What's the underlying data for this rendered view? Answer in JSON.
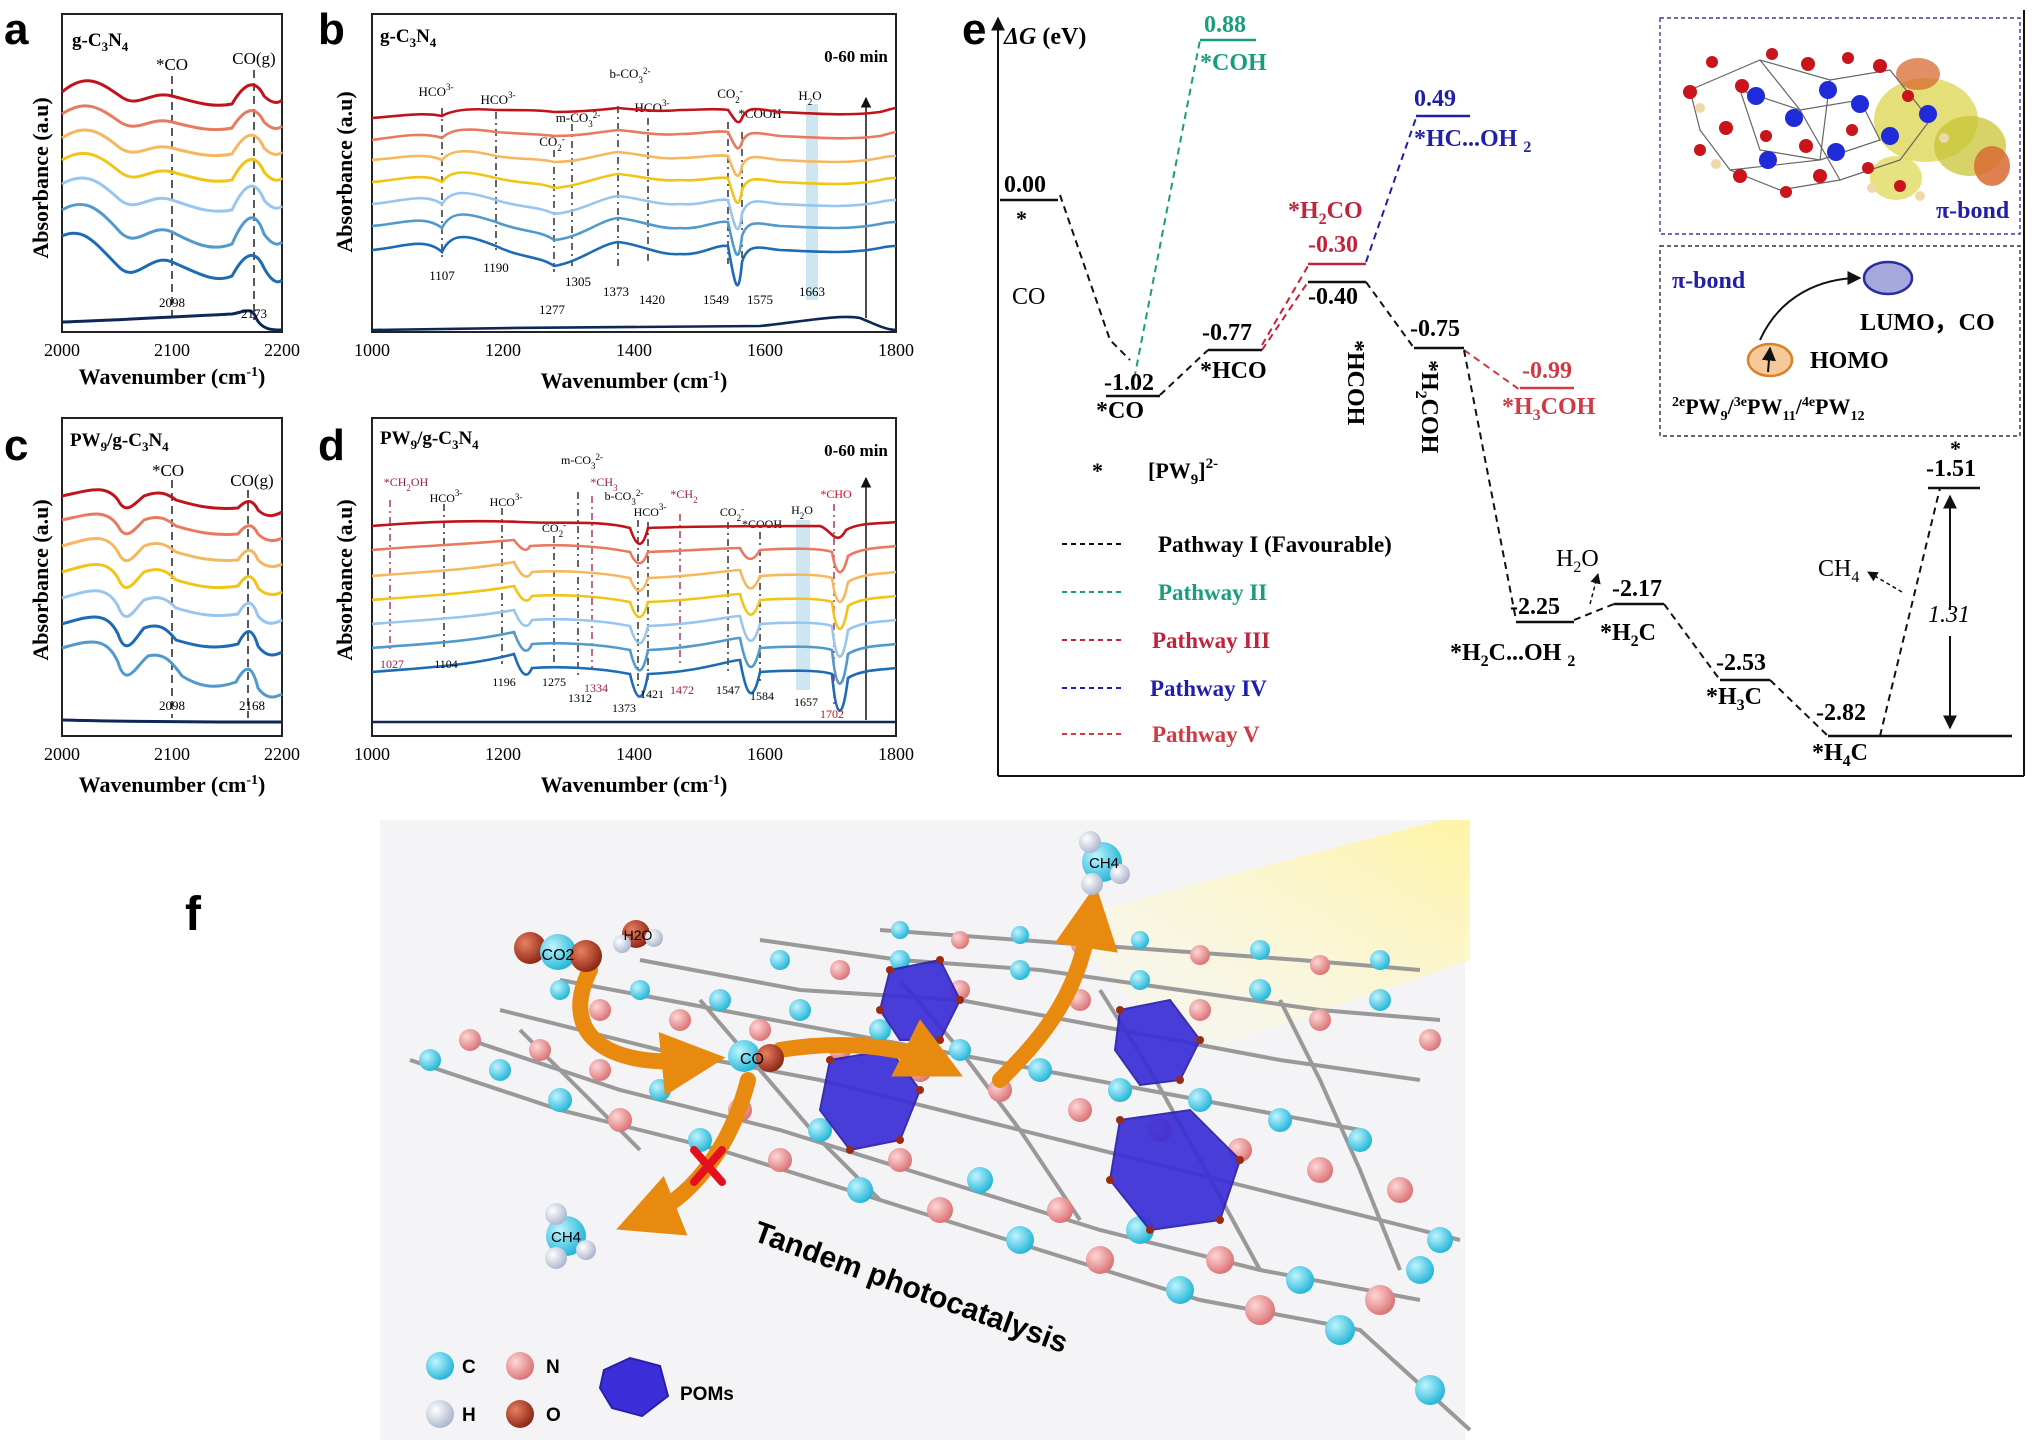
{
  "colors": {
    "spectra": [
      "#c0141c",
      "#e87a60",
      "#f5b860",
      "#f1c518",
      "#98c6ee",
      "#5299cc",
      "#1d6ab5",
      "#0d2855"
    ],
    "pathway_I": "#111111",
    "pathway_II": "#1a9d7e",
    "pathway_III": "#c0233a",
    "pathway_IV": "#1f1faa",
    "pathway_V": "#d03a44",
    "h2o_band": "#cde6f2",
    "atom_C": "#35c8e2",
    "atom_N": "#ea8c8e",
    "atom_H": "#c9d2e4",
    "atom_O": "#b43a24",
    "pom": "#3b2ed8"
  },
  "panel_labels": [
    "a",
    "b",
    "c",
    "d",
    "e",
    "f"
  ],
  "chart_data": [
    {
      "id": "a",
      "type": "line",
      "title": "g-C3N4",
      "xlabel": "Wavenumber (cm-1)",
      "ylabel": "Absorbance (a.u)",
      "xlim": [
        2000,
        2200
      ],
      "xticks": [
        2000,
        2100,
        2200
      ],
      "marker_labels": [
        "*CO",
        "CO(g)"
      ],
      "peaks": [
        2098,
        2173
      ],
      "series_count": 8
    },
    {
      "id": "b",
      "type": "line",
      "title": "g-C3N4",
      "xlabel": "Wavenumber (cm-1)",
      "ylabel": "Absorbance (a.u)",
      "xlim": [
        1000,
        1800
      ],
      "xticks": [
        1000,
        1200,
        1400,
        1600,
        1800
      ],
      "time_label": "0-60 min",
      "assignments": [
        "HCO3-",
        "HCO3-",
        "CO2-",
        "m-CO3 2-",
        "b-CO3 2-",
        "HCO3-",
        "CO2-",
        "*COOH",
        "H2O"
      ],
      "peaks": [
        1107,
        1190,
        1277,
        1305,
        1373,
        1420,
        1549,
        1575,
        1663
      ],
      "series_count": 8
    },
    {
      "id": "c",
      "type": "line",
      "title": "PW9/g-C3N4",
      "xlabel": "Wavenumber (cm-1)",
      "ylabel": "Absorbance (a.u)",
      "xlim": [
        2000,
        2200
      ],
      "xticks": [
        2000,
        2100,
        2200
      ],
      "marker_labels": [
        "*CO",
        "CO(g)"
      ],
      "peaks": [
        2098,
        2168
      ],
      "series_count": 8
    },
    {
      "id": "d",
      "type": "line",
      "title": "PW9/g-C3N4",
      "xlabel": "Wavenumber (cm-1)",
      "ylabel": "Absorbance (a.u)",
      "xlim": [
        1000,
        1800
      ],
      "xticks": [
        1000,
        1200,
        1400,
        1600,
        1800
      ],
      "time_label": "0-60 min",
      "assignments": [
        "*CH2OH",
        "HCO3-",
        "HCO3-",
        "CO2-",
        "m-CO3 2-",
        "*CH3",
        "b-CO3 2-",
        "HCO3-",
        "*CH2",
        "CO2-",
        "*COOH",
        "H2O",
        "*CHO"
      ],
      "peaks": [
        1027,
        1104,
        1196,
        1275,
        1312,
        1334,
        1373,
        1421,
        1472,
        1547,
        1584,
        1657,
        1702
      ],
      "series_count": 8
    },
    {
      "id": "e",
      "type": "line",
      "subtype": "free-energy diagram",
      "ylabel": "ΔG (eV)",
      "levels": [
        {
          "pathway": "I",
          "state": "*",
          "energy": 0.0,
          "label": "0.00"
        },
        {
          "pathway": "I",
          "state": "*CO",
          "energy": -1.02,
          "label": "-1.02"
        },
        {
          "pathway": "I",
          "state": "*HCO",
          "energy": -0.77,
          "label": "-0.77"
        },
        {
          "pathway": "I",
          "state": "*HCOH",
          "energy": -0.4,
          "label": "-0.40"
        },
        {
          "pathway": "I",
          "state": "*H2COH",
          "energy": -0.75,
          "label": "-0.75"
        },
        {
          "pathway": "I",
          "state": "*H2C...OH2",
          "energy": -2.25,
          "label": "-2.25"
        },
        {
          "pathway": "I",
          "state": "*H2C",
          "energy": -2.17,
          "label": "-2.17"
        },
        {
          "pathway": "I",
          "state": "*H3C",
          "energy": -2.53,
          "label": "-2.53"
        },
        {
          "pathway": "I",
          "state": "*H4C",
          "energy": -2.82,
          "label": "-2.82"
        },
        {
          "pathway": "I",
          "state": "*",
          "energy": -1.51,
          "label": "-1.51"
        },
        {
          "pathway": "II",
          "state": "*COH",
          "energy": 0.88,
          "label": "0.88"
        },
        {
          "pathway": "III",
          "state": "*H2CO",
          "energy": -0.3,
          "label": "-0.30"
        },
        {
          "pathway": "IV",
          "state": "*HC...OH2",
          "energy": 0.49,
          "label": "0.49"
        },
        {
          "pathway": "V",
          "state": "*H3COH",
          "energy": -0.99,
          "label": "-0.99"
        }
      ],
      "annotations": [
        "CO",
        "H2O",
        "CH4",
        "1.31"
      ],
      "legend": [
        {
          "name": "Pathway I (Favourable)",
          "color": "#111111"
        },
        {
          "name": "Pathway II",
          "color": "#1a9d7e"
        },
        {
          "name": "Pathway III",
          "color": "#c0233a"
        },
        {
          "name": "Pathway IV",
          "color": "#1f1faa"
        },
        {
          "name": "Pathway V",
          "color": "#d03a44"
        }
      ],
      "star_note": "*   [PW9]2-",
      "inset": {
        "pi_bond": "π-bond",
        "lumo_co": "LUMO，CO",
        "homo": "HOMO",
        "species": "2ePW9/3ePW11/4ePW12"
      }
    }
  ],
  "panel_f": {
    "molecules": [
      "CO2",
      "H2O",
      "CO",
      "CH4",
      "CH4"
    ],
    "caption": "Tandem photocatalysis",
    "legend": [
      {
        "symbol": "C",
        "color": "#35c8e2"
      },
      {
        "symbol": "N",
        "color": "#ea8c8e"
      },
      {
        "symbol": "H",
        "color": "#c9d2e4"
      },
      {
        "symbol": "O",
        "color": "#b43a24"
      },
      {
        "symbol": "POMs",
        "color": "#3b2ed8"
      }
    ]
  }
}
